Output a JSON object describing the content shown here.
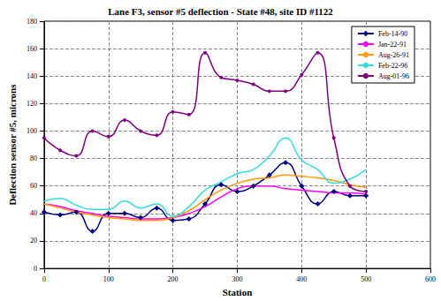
{
  "chart_data": {
    "type": "line",
    "title": "Lane F3, sensor #5 deflection - State #48, site ID #1122",
    "x_label": "Station",
    "y_label": "Deflection sensor #5, microns",
    "x": [
      0,
      25,
      50,
      75,
      100,
      125,
      150,
      175,
      200,
      225,
      250,
      275,
      300,
      325,
      350,
      375,
      400,
      425,
      450,
      475,
      500
    ],
    "series": [
      {
        "name": "Feb-14-90",
        "color": "#000080",
        "marker": "diamond",
        "values": [
          41,
          39,
          41,
          27,
          40,
          40,
          37,
          44,
          35,
          36,
          47,
          61,
          56,
          60,
          68,
          77,
          60,
          47,
          56,
          53,
          53
        ]
      },
      {
        "name": "Jan-22-91",
        "color": "#ff00ff",
        "marker": "none",
        "values": [
          47,
          45,
          42,
          40,
          38,
          37,
          36,
          36,
          37,
          40,
          45,
          52,
          58,
          60,
          60,
          58,
          57,
          56,
          55,
          55,
          54
        ]
      },
      {
        "name": "Aug-26-91",
        "color": "#ff9900",
        "marker": "none",
        "values": [
          47,
          44,
          41,
          39,
          37,
          36,
          35,
          35,
          37,
          42,
          50,
          57,
          62,
          65,
          66,
          68,
          67,
          66,
          64,
          61,
          59
        ]
      },
      {
        "name": "Feb-22-96",
        "color": "#33dddd",
        "marker": "none",
        "values": [
          49,
          51,
          46,
          43,
          43,
          49,
          44,
          47,
          38,
          45,
          57,
          63,
          69,
          72,
          82,
          95,
          79,
          72,
          62,
          65,
          72
        ]
      },
      {
        "name": "Aug-01-96",
        "color": "#800080",
        "marker": "circle",
        "values": [
          95,
          86,
          82,
          100,
          96,
          108,
          100,
          97,
          114,
          112,
          157,
          139,
          137,
          134,
          129,
          129,
          141,
          157,
          95,
          60,
          56
        ]
      }
    ],
    "xlim": [
      0,
      600
    ],
    "xticks": [
      0,
      100,
      200,
      300,
      400,
      500,
      600
    ],
    "ylim": [
      0,
      180
    ],
    "yticks": [
      0,
      20,
      40,
      60,
      80,
      100,
      120,
      140,
      160,
      180
    ],
    "grid": true,
    "legend": "upper right"
  }
}
